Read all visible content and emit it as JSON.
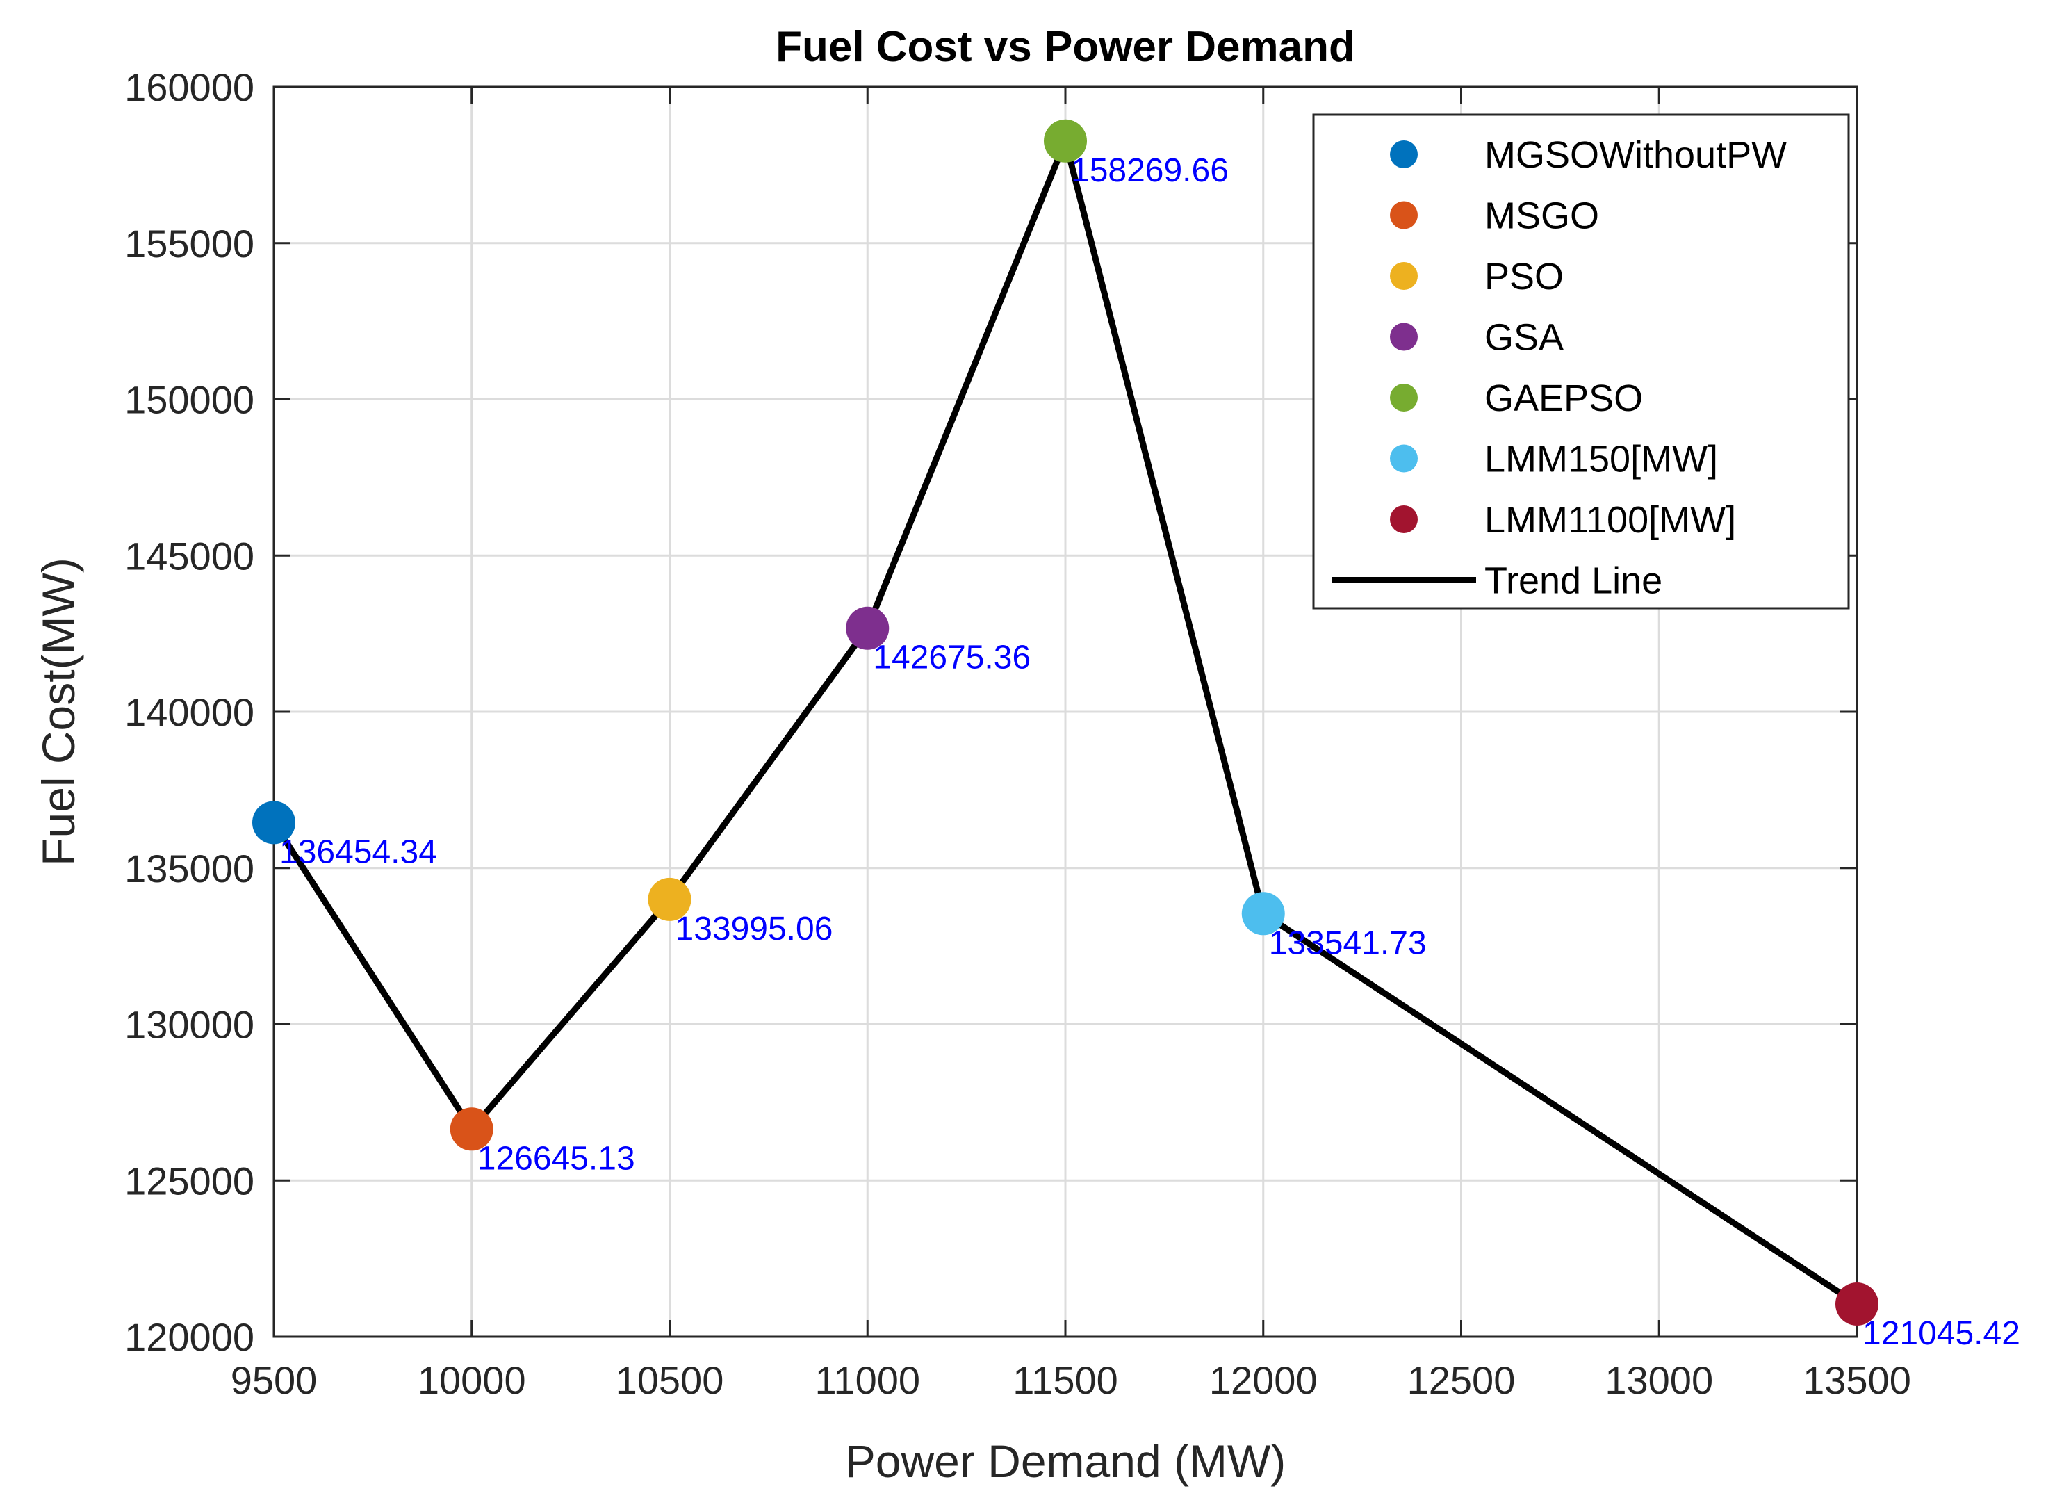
{
  "chart_data": {
    "type": "scatter",
    "title": "Fuel Cost vs Power Demand",
    "xlabel": "Power Demand (MW)",
    "ylabel": "Fuel Cost(MW)",
    "xlim": [
      9500,
      13500
    ],
    "ylim": [
      120000,
      160000
    ],
    "xticks": [
      9500,
      10000,
      10500,
      11000,
      11500,
      12000,
      12500,
      13000,
      13500
    ],
    "yticks": [
      120000,
      125000,
      130000,
      135000,
      140000,
      145000,
      150000,
      155000,
      160000
    ],
    "xtick_labels": [
      "9500",
      "10000",
      "10500",
      "11000",
      "11500",
      "12000",
      "12500",
      "13000",
      "13500"
    ],
    "ytick_labels": [
      "120000",
      "125000",
      "130000",
      "135000",
      "140000",
      "145000",
      "150000",
      "155000",
      "160000"
    ],
    "grid": true,
    "legend_position": "top-right",
    "label_color": "#0000ff",
    "series": [
      {
        "name": "MGSOWithoutPW",
        "x": 9500,
        "y": 136454.34,
        "label": "136454.34",
        "color": "#0072BD"
      },
      {
        "name": "MSGO",
        "x": 10000,
        "y": 126645.13,
        "label": "126645.13",
        "color": "#D95319"
      },
      {
        "name": "PSO",
        "x": 10500,
        "y": 133995.06,
        "label": "133995.06",
        "color": "#EDB120"
      },
      {
        "name": "GSA",
        "x": 11000,
        "y": 142675.36,
        "label": "142675.36",
        "color": "#7E2F8E"
      },
      {
        "name": "GAEPSO",
        "x": 11500,
        "y": 158269.66,
        "label": "158269.66",
        "color": "#77AC30"
      },
      {
        "name": "LMM150[MW]",
        "x": 12000,
        "y": 133541.73,
        "label": "133541.73",
        "color": "#4DBEEE"
      },
      {
        "name": "LMM1100[MW]",
        "x": 13500,
        "y": 121045.42,
        "label": "121045.42",
        "color": "#A2142F"
      }
    ],
    "trend_line": {
      "name": "Trend Line",
      "color": "#000000",
      "x": [
        9500,
        10000,
        10500,
        11000,
        11500,
        12000,
        13500
      ],
      "y": [
        136454.34,
        126645.13,
        133995.06,
        142675.36,
        158269.66,
        133541.73,
        121045.42
      ]
    }
  }
}
